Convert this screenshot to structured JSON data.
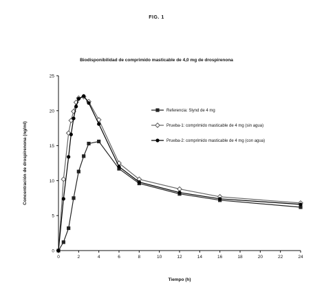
{
  "figure_label": "FIG. 1",
  "chart_data": {
    "type": "line",
    "title": "Biodisponibilidad de comprimido masticable de 4,0 mg de drospirenona",
    "xlabel": "Tiempo (h)",
    "ylabel": "Concentración de drospirenona (ng/ml)",
    "xlim": [
      0,
      24
    ],
    "ylim": [
      0,
      25
    ],
    "xticks": [
      0,
      2,
      4,
      6,
      8,
      10,
      12,
      14,
      16,
      18,
      20,
      22,
      24
    ],
    "yticks": [
      0,
      5,
      10,
      15,
      20,
      25
    ],
    "grid": false,
    "legend_position": "right",
    "series": [
      {
        "name": "Referencia: Slynd de 4 mg",
        "marker": "square",
        "color": "#222222",
        "x": [
          0,
          0.5,
          1,
          1.5,
          2,
          2.5,
          3,
          4,
          6,
          8,
          12,
          16,
          24
        ],
        "y": [
          0,
          1.2,
          3.2,
          7.5,
          11.3,
          13.5,
          15.3,
          15.6,
          11.7,
          9.6,
          8.1,
          7.2,
          6.2
        ]
      },
      {
        "name": "Prueba-1: comprimido masticable de 4 mg (sin agua)",
        "marker": "diamond",
        "color": "#666666",
        "x": [
          0,
          0.5,
          1,
          1.25,
          1.5,
          1.75,
          2,
          2.5,
          3,
          4,
          6,
          8,
          12,
          16,
          24
        ],
        "y": [
          0,
          10.2,
          16.8,
          18.6,
          19.9,
          21.2,
          21.8,
          22.0,
          21.3,
          18.7,
          12.5,
          10.2,
          8.8,
          7.7,
          6.8
        ]
      },
      {
        "name": "Prueba-2: comprimido masticable de 4 mg (con agua)",
        "marker": "circle",
        "color": "#000000",
        "x": [
          0,
          0.5,
          1,
          1.25,
          1.5,
          1.75,
          2,
          2.5,
          3,
          4,
          6,
          8,
          12,
          16,
          24
        ],
        "y": [
          0,
          7.4,
          13.4,
          16.6,
          18.9,
          20.6,
          21.7,
          22.1,
          21.1,
          18.1,
          12.0,
          9.8,
          8.3,
          7.4,
          6.6
        ]
      }
    ]
  }
}
